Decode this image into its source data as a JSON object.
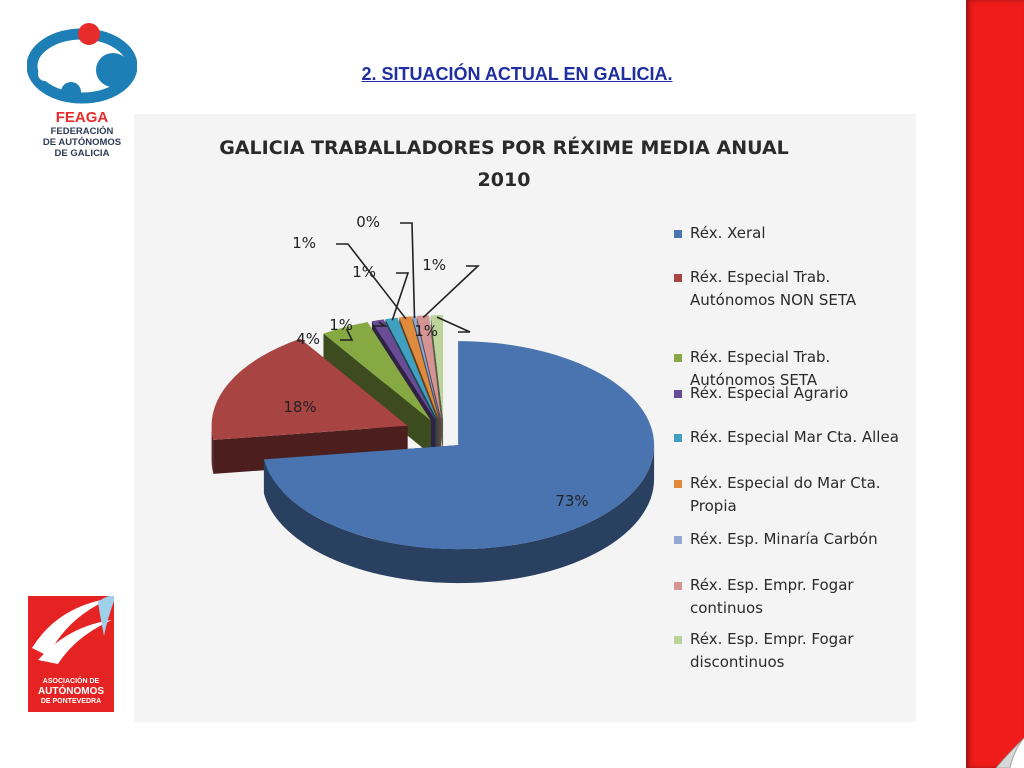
{
  "header": {
    "title": "2. SITUACIÓN ACTUAL EN GALICIA."
  },
  "feaga_logo": {
    "name": "FEAGA",
    "line1": "FEDERACIÓN",
    "line2": "DE AUTÓNOMOS",
    "line3": "DE GALICIA",
    "colors": {
      "red": "#e62b2b",
      "blue": "#1d7fb5",
      "dark": "#2f3a55"
    }
  },
  "apa_logo": {
    "line1": "ASOCIACIÓN DE",
    "line2": "AUTÓNOMOS",
    "line3": "DE PONTEVEDRA",
    "color": "#e62323"
  },
  "theme": {
    "accent_red": "#ef1c1c",
    "title_blue": "#1f2fa0"
  },
  "chart_data": {
    "type": "pie",
    "title_line1": "GALICIA TRABALLADORES POR RÉXIME MEDIA ANUAL",
    "title_line2": "2010",
    "style": "3d-exploded",
    "legend_position": "right",
    "slices": [
      {
        "label": "Réx. Xeral",
        "value": 73,
        "value_label": "73%",
        "color": "#4a74b0"
      },
      {
        "label": "Réx. Especial Trab. Autónomos NON SETA",
        "value": 18,
        "value_label": "18%",
        "color": "#a84543"
      },
      {
        "label": "Réx. Especial Trab. Autónomos  SETA",
        "value": 4,
        "value_label": "4%",
        "color": "#86a944"
      },
      {
        "label": "Réx. Especial Agrario",
        "value": 1,
        "value_label": "1%",
        "color": "#6a4c96"
      },
      {
        "label": "Réx. Especial Mar Cta. Allea",
        "value": 1,
        "value_label": "1%",
        "color": "#3fa1bf"
      },
      {
        "label": "Réx. Especial do Mar Cta. Propia",
        "value": 1,
        "value_label": "1%",
        "color": "#e08a3c"
      },
      {
        "label": "Réx. Esp. Minaría Carbón",
        "value": 0,
        "value_label": "0%",
        "color": "#93a9d2"
      },
      {
        "label": "Réx. Esp. Empr. Fogar continuos",
        "value": 1,
        "value_label": "1%",
        "color": "#d49494"
      },
      {
        "label": "Réx. Esp. Empr. Fogar discontinuos",
        "value": 1,
        "value_label": "1%",
        "color": "#bcd39a"
      }
    ]
  }
}
